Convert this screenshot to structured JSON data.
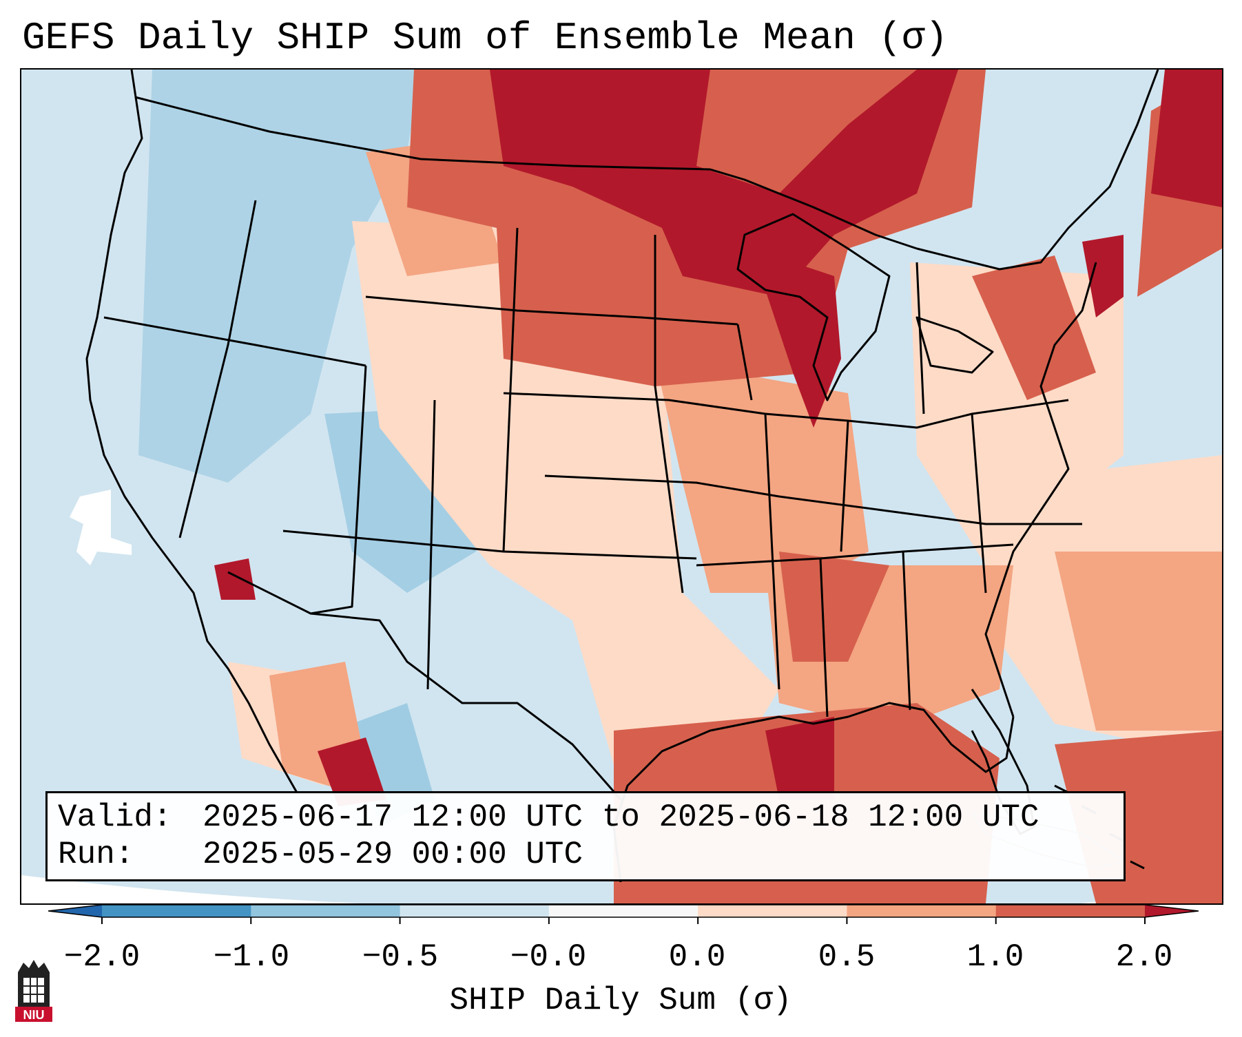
{
  "title": "GEFS Daily SHIP Sum of Ensemble Mean (σ)",
  "info": {
    "valid_label": "Valid:",
    "valid_value": "2025-06-17 12:00 UTC to 2025-06-18 12:00 UTC",
    "run_label": "Run:",
    "run_value": "2025-05-29 00:00 UTC"
  },
  "colorbar": {
    "label": "SHIP Daily Sum (σ)",
    "ticks": [
      "−2.0",
      "−1.0",
      "−0.5",
      "−0.0",
      "0.0",
      "0.5",
      "1.0",
      "2.0"
    ],
    "bins": [
      {
        "range": "below -2.0",
        "color": "#2166ac"
      },
      {
        "range": "-2.0 to -1.0",
        "color": "#4393c3"
      },
      {
        "range": "-1.0 to -0.5",
        "color": "#92c5de"
      },
      {
        "range": "-0.5 to -0.0",
        "color": "#d1e5f0"
      },
      {
        "range": "-0.0 to 0.0",
        "color": "#f7f7f7"
      },
      {
        "range": "0.0 to 0.5",
        "color": "#fddbc7"
      },
      {
        "range": "0.5 to 1.0",
        "color": "#f4a582"
      },
      {
        "range": "1.0 to 2.0",
        "color": "#d6604d"
      },
      {
        "range": "above 2.0",
        "color": "#b2182b"
      }
    ]
  },
  "map": {
    "region": "Contiguous United States",
    "icons": [
      "niu-logo"
    ]
  },
  "logo": {
    "text": "NIU"
  }
}
